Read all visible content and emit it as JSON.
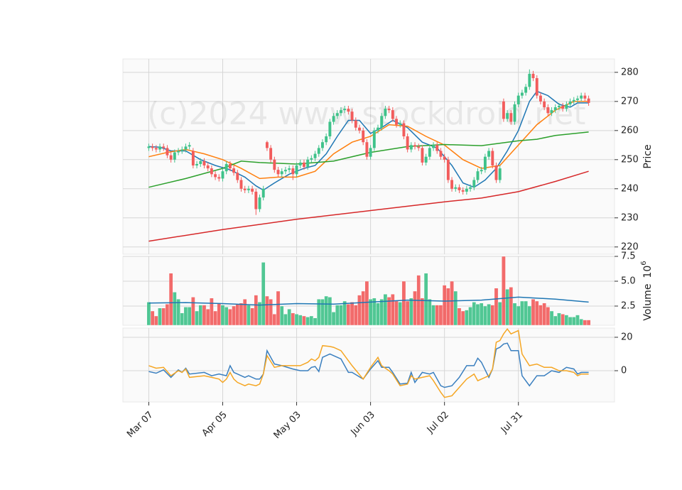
{
  "chart_data": [
    {
      "type": "candlestick",
      "watermark": "(c)2024 www.stockdroid.net",
      "ylabel": "Price",
      "xlim": [
        -7,
        126
      ],
      "ylim": [
        217.5,
        284.6
      ],
      "yticks": [
        220,
        230,
        240,
        250,
        260,
        270,
        280
      ],
      "grid": true,
      "up_color": "#3fc28a",
      "down_color": "#f25c5c",
      "open": [
        254,
        254.5,
        254,
        253.5,
        254.5,
        254,
        251.5,
        250,
        252.5,
        253,
        253.5,
        254.5,
        253,
        248,
        248.5,
        249.5,
        248,
        247,
        245,
        244,
        243.5,
        246,
        248.5,
        247,
        245.5,
        243,
        240,
        239.5,
        240,
        239,
        233,
        237,
        256,
        254,
        250,
        246.5,
        245,
        246,
        246.5,
        247,
        245,
        248,
        249,
        247.5,
        250,
        250.5,
        252,
        254,
        256,
        258,
        263,
        265,
        266,
        267,
        267.5,
        266.5,
        263.5,
        261,
        260,
        256,
        251,
        254,
        260,
        261,
        265,
        267.5,
        267,
        264,
        262,
        262.5,
        258,
        253.5,
        255,
        254.5,
        254,
        249,
        251,
        254,
        255,
        253,
        251,
        250,
        243,
        240,
        240.5,
        239.5,
        239,
        240,
        240.5,
        243,
        246,
        246.5,
        251,
        253,
        248,
        243,
        270,
        264,
        266,
        263,
        269,
        272,
        273,
        275,
        279.5,
        278,
        272,
        270,
        268,
        266,
        267,
        268,
        268.5,
        267.5,
        269,
        270,
        270.5,
        271,
        272,
        271
      ],
      "high": [
        255.5,
        255.5,
        255,
        255.5,
        255.5,
        255,
        252.5,
        253.5,
        254,
        254.5,
        255.5,
        256,
        254,
        249.5,
        250.5,
        250.5,
        249,
        248,
        246,
        245,
        247,
        249.5,
        249.5,
        248,
        246.5,
        244,
        241,
        241,
        241,
        240,
        238,
        241,
        256.5,
        255,
        251,
        247.5,
        247,
        247.5,
        248,
        248,
        249,
        250,
        250,
        251,
        251.5,
        253,
        255,
        257,
        259,
        264,
        266,
        267,
        268,
        268.5,
        268.5,
        267.5,
        264.5,
        262,
        261,
        257,
        255,
        261,
        262,
        266,
        268.5,
        268.5,
        268,
        265,
        263.5,
        263.5,
        259,
        256,
        256,
        255.5,
        255,
        252,
        255,
        256,
        256,
        254,
        252,
        251,
        244,
        241.5,
        241.5,
        240.5,
        241,
        241.5,
        244,
        247,
        247.5,
        252,
        254,
        254,
        249,
        248,
        271,
        267,
        267,
        270,
        273,
        274,
        276,
        281,
        280.5,
        279,
        273,
        271,
        269,
        268,
        269,
        269.5,
        269.5,
        270,
        271,
        271.5,
        272,
        273,
        273,
        272
      ],
      "low": [
        253,
        253,
        252.5,
        252.5,
        253,
        250.5,
        249,
        249,
        251.5,
        252,
        252.5,
        253.5,
        247,
        247,
        247.5,
        247,
        246,
        244,
        243,
        242.5,
        242.5,
        245,
        246,
        244.5,
        242,
        239,
        238.5,
        238.5,
        238,
        231,
        232,
        236,
        253,
        249,
        245.5,
        244,
        244,
        245,
        245.5,
        243,
        244,
        247,
        246.5,
        246.5,
        249,
        249.5,
        251,
        253,
        255,
        257,
        262,
        264,
        265,
        266,
        265.5,
        262.5,
        260,
        259,
        255,
        250,
        250,
        253,
        259,
        260,
        264,
        266,
        263,
        261,
        261,
        257,
        252.5,
        252.5,
        253.5,
        253,
        248,
        248,
        250,
        253,
        252,
        250,
        249,
        242,
        239,
        239,
        238.5,
        238,
        238,
        239,
        239.5,
        242,
        245,
        245.5,
        250,
        247,
        242,
        242,
        263,
        263,
        262,
        262,
        268,
        271,
        272,
        274,
        277,
        271,
        269,
        267,
        265,
        265,
        266,
        267,
        266.5,
        266.5,
        268,
        269,
        269.5,
        270,
        270,
        268.5
      ],
      "close": [
        254.5,
        254,
        253.5,
        254.5,
        254,
        251.5,
        250,
        252.5,
        253,
        253.5,
        254.5,
        255,
        248,
        248.5,
        249.5,
        248,
        247,
        245,
        244,
        243.5,
        246,
        248.5,
        247,
        245.5,
        243,
        240,
        239.5,
        240,
        239,
        233,
        237,
        240,
        254,
        250,
        246.5,
        245,
        246,
        246.5,
        247,
        245,
        248,
        249,
        247.5,
        250,
        250.5,
        252,
        254,
        256,
        258,
        263,
        265,
        266,
        267,
        267.5,
        266.5,
        263.5,
        261,
        260,
        256,
        251,
        254,
        260,
        261,
        265,
        267.5,
        267,
        264,
        262,
        262.5,
        258,
        253.5,
        255,
        254.5,
        254,
        249,
        251,
        254,
        255,
        253,
        251,
        250,
        243,
        240,
        240.5,
        239.5,
        239,
        240,
        240.5,
        243,
        246,
        246.5,
        251,
        253,
        248,
        243,
        247,
        264,
        266,
        263,
        269,
        272,
        273,
        275,
        279.5,
        278,
        272,
        270,
        268,
        266,
        267,
        268,
        268.5,
        267.5,
        269,
        270,
        270.5,
        271,
        272,
        271,
        269.5
      ],
      "series": [
        {
          "color": "#1f77b4",
          "x": [
            0,
            3,
            6,
            10,
            14,
            18,
            22,
            26,
            29,
            31,
            34,
            38,
            42,
            45,
            48,
            51,
            54,
            57,
            60,
            63,
            66,
            70,
            74,
            78,
            82,
            85,
            88,
            91,
            94,
            97,
            100,
            103,
            105,
            108,
            111,
            114,
            116,
            119
          ],
          "values": [
            254.5,
            254.3,
            253,
            253,
            250,
            248,
            246.5,
            244,
            241,
            239.5,
            242,
            245,
            247,
            248,
            252,
            258,
            263.5,
            263.5,
            259,
            261,
            263.5,
            261,
            256,
            254,
            248,
            242,
            240.5,
            243,
            247,
            253,
            260,
            270,
            273.5,
            272,
            269,
            268,
            269.5,
            269.5
          ]
        },
        {
          "color": "#ff7f0e",
          "x": [
            0,
            5,
            10,
            15,
            20,
            25,
            30,
            35,
            40,
            45,
            50,
            55,
            60,
            65,
            70,
            75,
            80,
            85,
            90,
            95,
            100,
            105,
            110,
            115,
            119
          ],
          "values": [
            251,
            252.5,
            253.5,
            252,
            250,
            247,
            243.5,
            244,
            244,
            246,
            252,
            256,
            258,
            262,
            261.5,
            258,
            255,
            250,
            247,
            248,
            255,
            262,
            267,
            270,
            270
          ]
        },
        {
          "color": "#2ca02c",
          "x": [
            0,
            10,
            20,
            25,
            30,
            40,
            50,
            60,
            70,
            80,
            90,
            100,
            105,
            110,
            119
          ],
          "values": [
            240.5,
            243.5,
            247,
            249.5,
            249,
            248.5,
            249.5,
            252.5,
            254.5,
            255.2,
            254.8,
            256.5,
            257,
            258.3,
            259.5
          ]
        },
        {
          "color": "#d62728",
          "x": [
            0,
            20,
            40,
            60,
            70,
            80,
            90,
            100,
            110,
            119
          ],
          "values": [
            222,
            226,
            229.5,
            232.5,
            234,
            235.5,
            236.8,
            239,
            242.5,
            246
          ]
        }
      ]
    },
    {
      "type": "bar",
      "ylabel": "Volume",
      "scale_base": "10",
      "scale_exponent": "6",
      "xlim": [
        -7,
        126
      ],
      "ylim": [
        0.57,
        7.5
      ],
      "yticks": [
        2.5,
        {
          "value": 5,
          "label": "5.0"
        },
        7.5
      ],
      "grid": true,
      "values": [
        2.9,
        2.0,
        1.5,
        2.3,
        2.3,
        2.7,
        5.8,
        3.9,
        3.2,
        1.8,
        2.4,
        2.4,
        3.4,
        2.0,
        2.6,
        2.6,
        2.2,
        3.3,
        2.0,
        2.8,
        2.6,
        2.4,
        2.2,
        2.5,
        2.7,
        2.8,
        3.2,
        2.6,
        2.3,
        3.6,
        2.9,
        6.9,
        3.5,
        3.2,
        1.7,
        4.0,
        2.5,
        1.7,
        2.2,
        1.8,
        1.7,
        1.6,
        1.5,
        1.4,
        1.5,
        1.3,
        3.2,
        3.2,
        3.5,
        3.4,
        1.9,
        2.6,
        2.6,
        3.0,
        2.7,
        2.9,
        2.6,
        3.6,
        4.0,
        5.0,
        3.2,
        3.3,
        2.8,
        3.2,
        3.7,
        3.4,
        3.7,
        3.0,
        2.9,
        5.0,
        3.0,
        3.3,
        4.0,
        5.6,
        3.3,
        5.8,
        3.2,
        2.6,
        2.6,
        2.6,
        4.6,
        4.3,
        5.0,
        4.0,
        2.3,
        2.0,
        2.1,
        2.4,
        2.9,
        2.7,
        2.8,
        2.5,
        2.7,
        2.6,
        4.3,
        2.9,
        7.5,
        4.2,
        4.4,
        2.8,
        2.5,
        3.0,
        3.0,
        2.5,
        3.2,
        3.0,
        2.6,
        2.8,
        2.4,
        2.0,
        1.5,
        1.8,
        1.7,
        1.6,
        1.4,
        1.4,
        1.6,
        1.2,
        1.1,
        1.1
      ],
      "series": [
        {
          "color": "#1f77b4",
          "x": [
            0,
            10,
            20,
            30,
            40,
            50,
            60,
            70,
            80,
            90,
            100,
            110,
            119
          ],
          "values": [
            2.8,
            2.85,
            2.75,
            2.6,
            2.75,
            2.7,
            2.9,
            3.1,
            3.0,
            3.1,
            3.4,
            3.2,
            2.9
          ]
        }
      ]
    },
    {
      "type": "line",
      "xlim": [
        -7,
        126
      ],
      "ylim": [
        -18.7,
        25.5
      ],
      "yticks": [
        0,
        20
      ],
      "grid": true,
      "xticks": [
        {
          "value": 0,
          "label": "Mar 07"
        },
        {
          "value": 20,
          "label": "Apr 05"
        },
        {
          "value": 40,
          "label": "May 03"
        },
        {
          "value": 60,
          "label": "Jun 03"
        },
        {
          "value": 80,
          "label": "Jul 02"
        },
        {
          "value": 100,
          "label": "Jul 31"
        }
      ],
      "series": [
        {
          "color": "#3a7fbf",
          "x": [
            0,
            2,
            4,
            6,
            8,
            9,
            10,
            11,
            15,
            17,
            19,
            20,
            21,
            22,
            23,
            24,
            26,
            27,
            29,
            30,
            31,
            32,
            34,
            36,
            39,
            41,
            43,
            44,
            45,
            46,
            47,
            49,
            50,
            52,
            54,
            55,
            58,
            60,
            62,
            63,
            65,
            66,
            68,
            70,
            71,
            72,
            74,
            76,
            77,
            79,
            80,
            82,
            84,
            86,
            88,
            89,
            90,
            92,
            93,
            94,
            95,
            96,
            97,
            98,
            100,
            101,
            103,
            105,
            107,
            109,
            111,
            113,
            115,
            116,
            117,
            119
          ],
          "values": [
            -0.5,
            -1.5,
            0.5,
            -4,
            0.5,
            -1,
            1.5,
            -2,
            -1,
            -3,
            -2,
            -2.5,
            -3,
            3,
            -1,
            -2,
            -4,
            -3,
            -5,
            -5,
            -2,
            12,
            4,
            3,
            1,
            0,
            0,
            2,
            2.5,
            -0.5,
            8,
            10,
            9,
            7,
            -1,
            -1,
            -5,
            1,
            6,
            2,
            2,
            -1,
            -8,
            -7.5,
            -1,
            -7,
            -1,
            -2,
            -1,
            -9,
            -10,
            -9,
            -4,
            3,
            3,
            7.5,
            5,
            -4,
            1,
            13,
            14,
            16,
            16.5,
            12,
            12,
            -3,
            -9,
            -3,
            -3,
            0,
            -1,
            2,
            1,
            -2,
            -1,
            -1
          ]
        },
        {
          "color": "#f5a623",
          "x": [
            0,
            2,
            4,
            6,
            8,
            9,
            10,
            11,
            15,
            17,
            19,
            20,
            21,
            22,
            23,
            24,
            26,
            27,
            29,
            30,
            31,
            32,
            34,
            36,
            39,
            41,
            43,
            44,
            45,
            46,
            47,
            49,
            50,
            52,
            54,
            55,
            58,
            60,
            62,
            63,
            65,
            66,
            68,
            70,
            71,
            72,
            74,
            76,
            77,
            79,
            80,
            82,
            84,
            86,
            88,
            89,
            90,
            92,
            93,
            94,
            95,
            96,
            97,
            98,
            100,
            101,
            103,
            105,
            107,
            109,
            111,
            113,
            115,
            116,
            117,
            119
          ],
          "values": [
            3,
            1.5,
            2,
            -3,
            0,
            -1,
            1,
            -4,
            -3,
            -4,
            -5,
            -7,
            -5,
            -1,
            -5,
            -7,
            -9,
            -8,
            -9,
            -8,
            -2,
            9,
            2,
            3,
            3,
            3,
            5,
            7,
            6,
            8,
            15,
            14.5,
            14,
            12,
            6,
            3,
            -5,
            2,
            8,
            3,
            0,
            -2,
            -9,
            -8,
            -3,
            -5,
            -4,
            -3,
            -6,
            -13,
            -16,
            -15,
            -10,
            -5,
            -2,
            -6,
            -5,
            -3,
            1,
            17,
            18,
            22,
            25,
            22,
            24,
            10,
            3,
            4,
            2,
            2,
            0,
            0,
            -1,
            -3,
            -2,
            -2
          ]
        }
      ]
    }
  ]
}
